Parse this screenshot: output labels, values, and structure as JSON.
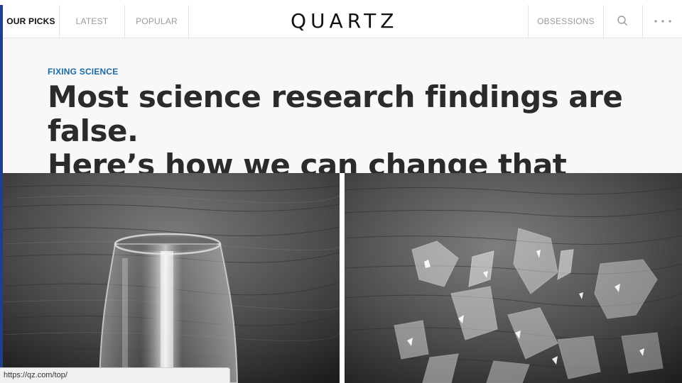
{
  "nav": {
    "items": [
      {
        "label": "OUR PICKS",
        "active": true
      },
      {
        "label": "LATEST",
        "active": false
      },
      {
        "label": "POPULAR",
        "active": false
      }
    ],
    "logo": "QUARTZ",
    "right_items": [
      {
        "label": "OBSESSIONS"
      }
    ],
    "search_icon": "search-icon",
    "more_icon": "more-icon"
  },
  "article": {
    "kicker": "FIXING SCIENCE",
    "headline_line1": "Most science research findings are false.",
    "headline_line2": "Here’s how we can change that"
  },
  "hero": {
    "left_image": "intact-wine-glass",
    "right_image": "shattered-wine-glass"
  },
  "status_bar": {
    "url": "https://qz.com/top/"
  },
  "colors": {
    "accent": "#1f3f8a",
    "kicker": "#1a6aa6",
    "headline": "#2b2b2b"
  }
}
